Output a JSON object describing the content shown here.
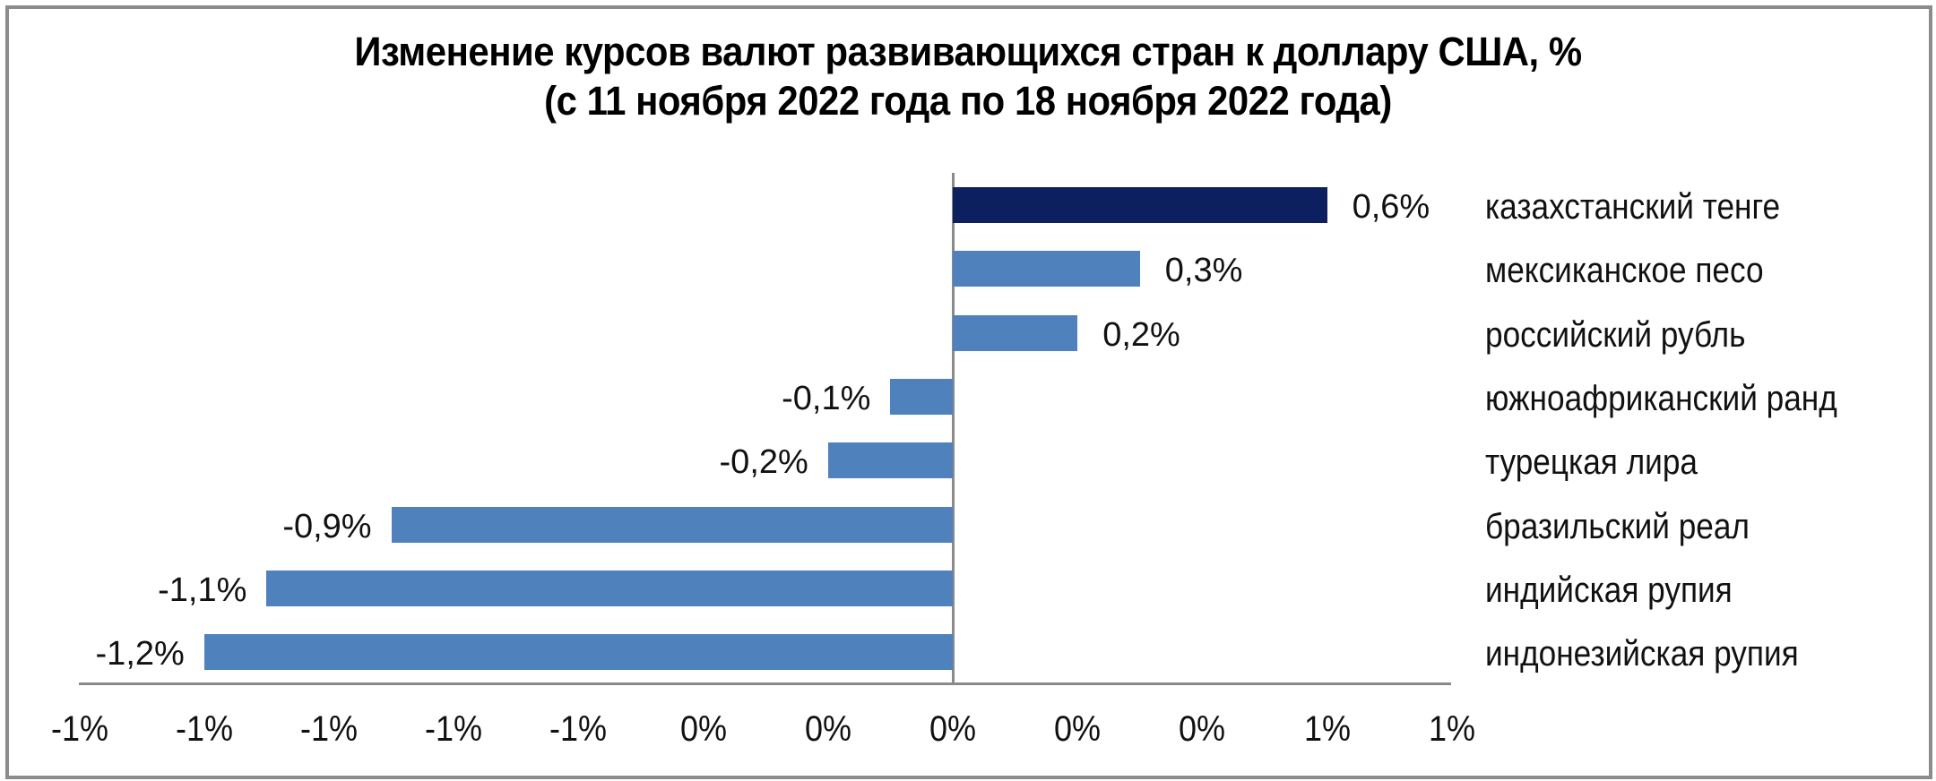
{
  "chart_data": {
    "type": "bar",
    "orientation": "horizontal",
    "title": "Изменение курсов валют развивающихся стран к доллару США, %",
    "subtitle": "(с 11 ноября 2022 года по 18 ноября 2022 года)",
    "categories": [
      "казахстанский тенге",
      "мексиканское песо",
      "российский рубль",
      "южноафриканский ранд",
      "турецкая лира",
      "бразильский реал",
      "индийская рупия",
      "индонезийская рупия"
    ],
    "values": [
      0.6,
      0.3,
      0.2,
      -0.1,
      -0.2,
      -0.9,
      -1.1,
      -1.2
    ],
    "value_labels": [
      "0,6%",
      "0,3%",
      "0,2%",
      "-0,1%",
      "-0,2%",
      "-0,9%",
      "-1,1%",
      "-1,2%"
    ],
    "bar_colors": [
      "#0c1f5f",
      "#4f81bd",
      "#4f81bd",
      "#4f81bd",
      "#4f81bd",
      "#4f81bd",
      "#4f81bd",
      "#4f81bd"
    ],
    "xlabel": "",
    "ylabel": "",
    "xlim": [
      -1.4,
      0.8
    ],
    "x_ticks": [
      -1.4,
      -1.2,
      -1.0,
      -0.8,
      -0.6,
      -0.4,
      -0.2,
      0.0,
      0.2,
      0.4,
      0.6,
      0.8
    ],
    "x_tick_labels": [
      "-1%",
      "-1%",
      "-1%",
      "-1%",
      "-1%",
      "0%",
      "0%",
      "0%",
      "0%",
      "0%",
      "1%",
      "1%"
    ],
    "grid": false,
    "legend": null,
    "category_label_position": "right"
  },
  "colors": {
    "highlight": "#0c1f5f",
    "bar": "#4f81bd",
    "axis": "#8a8a8a",
    "frame": "#8c8c8c"
  }
}
